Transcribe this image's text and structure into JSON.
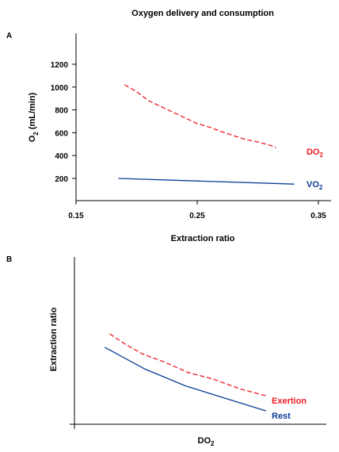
{
  "colors": {
    "red": "#ee1c25",
    "blue": "#0a3c96",
    "axis": "#000000"
  },
  "chart_data": [
    {
      "panel": "A",
      "type": "line",
      "title": "Oxygen delivery and consumption",
      "xlabel": "Extraction ratio",
      "ylabel": {
        "base": "O",
        "sub": "2",
        "rest": " (mL/min)"
      },
      "xlim": [
        0.15,
        0.35
      ],
      "ylim": [
        0,
        1400
      ],
      "xticks": [
        "0.15",
        "0.25",
        "0.35"
      ],
      "yticks": [
        "200",
        "400",
        "600",
        "800",
        "1000",
        "1200"
      ],
      "series": [
        {
          "name": {
            "base": "DO",
            "sub": "2"
          },
          "color": "#ee1c25",
          "style": "dashed",
          "x": [
            0.19,
            0.2,
            0.21,
            0.22,
            0.23,
            0.24,
            0.25,
            0.26,
            0.27,
            0.28,
            0.29,
            0.3,
            0.31,
            0.315
          ],
          "y": [
            1020,
            960,
            880,
            830,
            780,
            730,
            680,
            650,
            610,
            575,
            540,
            520,
            490,
            470
          ]
        },
        {
          "name": {
            "base": "VO",
            "sub": "2"
          },
          "color": "#0a3c96",
          "style": "solid",
          "x": [
            0.185,
            0.33
          ],
          "y": [
            200,
            150
          ]
        }
      ]
    },
    {
      "panel": "B",
      "type": "line",
      "title": "",
      "xlabel": {
        "base": "DO",
        "sub": "2"
      },
      "ylabel": "Extraction ratio",
      "xlim": [
        0,
        10
      ],
      "ylim": [
        0,
        10
      ],
      "series": [
        {
          "name": "Exertion",
          "color": "#ee1c25",
          "style": "dashed",
          "x": [
            1.4,
            2.0,
            2.7,
            3.6,
            4.5,
            5.5,
            6.6,
            7.6
          ],
          "y": [
            5.4,
            4.8,
            4.2,
            3.7,
            3.1,
            2.7,
            2.1,
            1.7
          ]
        },
        {
          "name": "Rest",
          "color": "#0a3c96",
          "style": "solid",
          "x": [
            1.2,
            2.8,
            4.4,
            6.1,
            7.6
          ],
          "y": [
            4.6,
            3.3,
            2.3,
            1.5,
            0.8
          ]
        }
      ]
    }
  ]
}
